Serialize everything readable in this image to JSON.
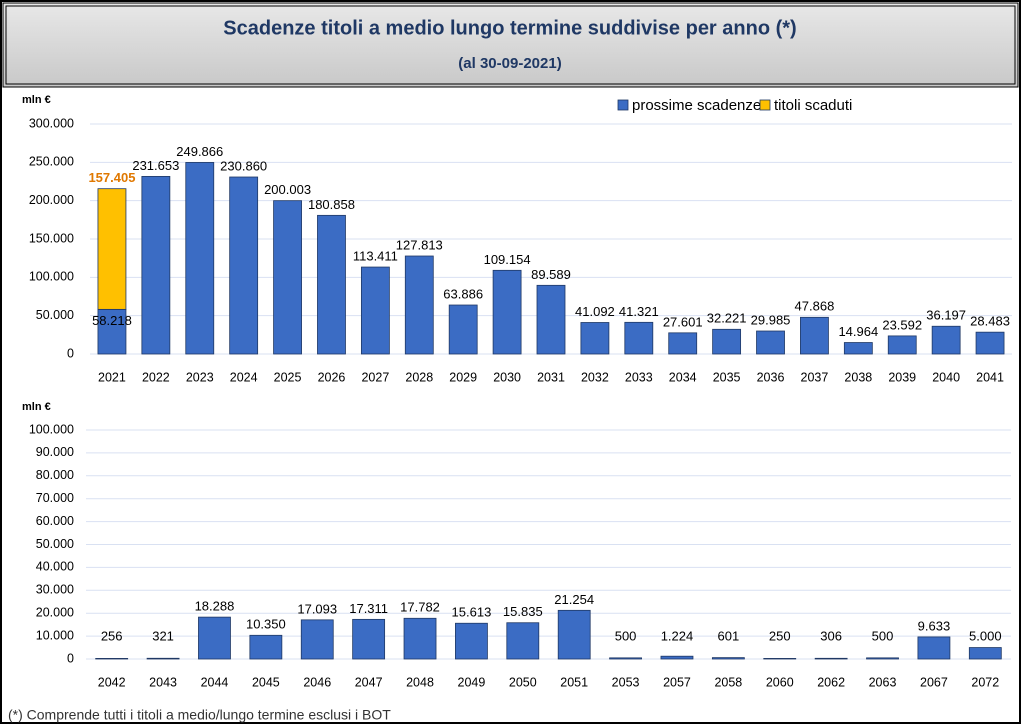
{
  "header": {
    "title": "Scadenze titoli a medio lungo termine suddivise per anno (*)",
    "subtitle": "(al  30-09-2021)"
  },
  "footnote": "(*) Comprende tutti i titoli a medio/lungo termine esclusi i BOT",
  "chart_data": [
    {
      "type": "stacked_bar",
      "ylabel": "mln €",
      "categories": [
        "2021",
        "2022",
        "2023",
        "2024",
        "2025",
        "2026",
        "2027",
        "2028",
        "2029",
        "2030",
        "2031",
        "2032",
        "2033",
        "2034",
        "2035",
        "2036",
        "2037",
        "2038",
        "2039",
        "2040",
        "2041"
      ],
      "series": [
        {
          "name": "prossime scadenze",
          "color": "#3b6cc4",
          "values": [
            58218,
            231653,
            249866,
            230860,
            200003,
            180858,
            113411,
            127813,
            63886,
            109154,
            89589,
            41092,
            41321,
            27601,
            32221,
            29985,
            47868,
            14964,
            23592,
            36197,
            28483
          ],
          "value_labels": [
            "58.218",
            "231.653",
            "249.866",
            "230.860",
            "200.003",
            "180.858",
            "113.411",
            "127.813",
            "63.886",
            "109.154",
            "89.589",
            "41.092",
            "41.321",
            "27.601",
            "32.221",
            "29.985",
            "47.868",
            "14.964",
            "23.592",
            "36.197",
            "28.483"
          ]
        },
        {
          "name": "titoli scaduti",
          "color": "#ffc000",
          "label_color": "#e07800",
          "values": [
            157405,
            null,
            null,
            null,
            null,
            null,
            null,
            null,
            null,
            null,
            null,
            null,
            null,
            null,
            null,
            null,
            null,
            null,
            null,
            null,
            null
          ],
          "value_labels": [
            "157.405",
            null,
            null,
            null,
            null,
            null,
            null,
            null,
            null,
            null,
            null,
            null,
            null,
            null,
            null,
            null,
            null,
            null,
            null,
            null,
            null
          ]
        }
      ],
      "ylim": [
        0,
        300000
      ],
      "yticks": [
        0,
        {
          "value": 50000,
          "label": "50.000"
        },
        {
          "value": 100000,
          "label": "100.000"
        },
        {
          "value": 150000,
          "label": "150.000"
        },
        {
          "value": 200000,
          "label": "200.000"
        },
        {
          "value": 250000,
          "label": "250.000"
        },
        {
          "value": 300000,
          "label": "300.000"
        }
      ],
      "grid": true,
      "legend": "top-right"
    },
    {
      "type": "bar",
      "ylabel": "mln €",
      "categories": [
        "2042",
        "2043",
        "2044",
        "2045",
        "2046",
        "2047",
        "2048",
        "2049",
        "2050",
        "2051",
        "2053",
        "2057",
        "2058",
        "2060",
        "2062",
        "2063",
        "2067",
        "2072"
      ],
      "values": [
        256,
        321,
        18288,
        10350,
        17093,
        17311,
        17782,
        15613,
        15835,
        21254,
        500,
        1224,
        601,
        250,
        306,
        500,
        9633,
        5000
      ],
      "value_labels": [
        "256",
        "321",
        "18.288",
        "10.350",
        "17.093",
        "17.311",
        "17.782",
        "15.613",
        "15.835",
        "21.254",
        "500",
        "1.224",
        "601",
        "250",
        "306",
        "500",
        "9.633",
        "5.000"
      ],
      "color": "#3b6cc4",
      "ylim": [
        0,
        100000
      ],
      "yticks": [
        0,
        {
          "value": 10000,
          "label": "10.000"
        },
        {
          "value": 20000,
          "label": "20.000"
        },
        {
          "value": 30000,
          "label": "30.000"
        },
        {
          "value": 40000,
          "label": "40.000"
        },
        {
          "value": 50000,
          "label": "50.000"
        },
        {
          "value": 60000,
          "label": "60.000"
        },
        {
          "value": 70000,
          "label": "70.000"
        },
        {
          "value": 80000,
          "label": "80.000"
        },
        {
          "value": 90000,
          "label": "90.000"
        },
        {
          "value": 100000,
          "label": "100.000"
        }
      ],
      "grid": true
    }
  ]
}
